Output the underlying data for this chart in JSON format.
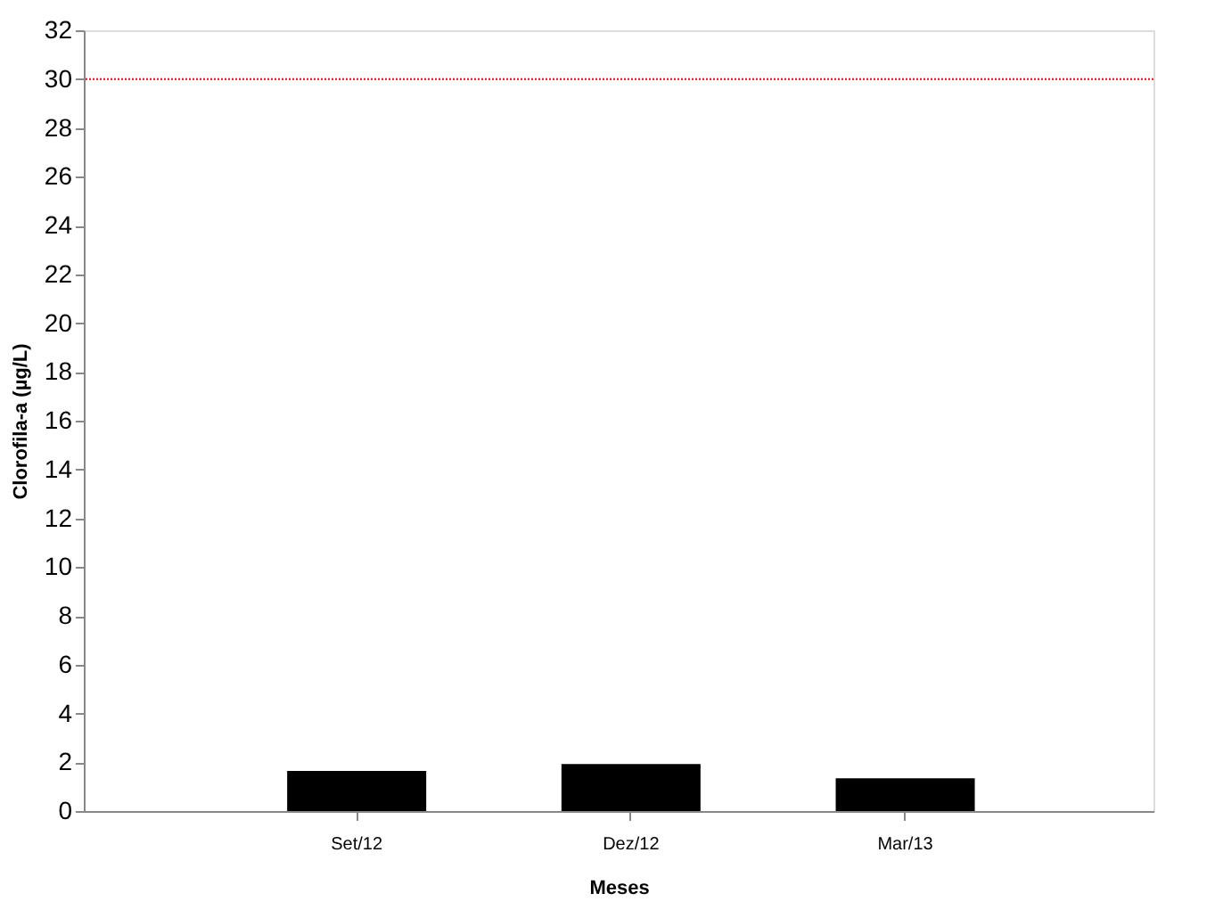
{
  "chart_data": {
    "type": "bar",
    "xlabel": "Meses",
    "ylabel": "Clorofila-a (µg/L)",
    "categories": [
      "Set/12",
      "Dez/12",
      "Mar/13"
    ],
    "values": [
      1.64,
      1.93,
      1.34
    ],
    "color": "#000000",
    "ylim": [
      0,
      32
    ],
    "yticks": [
      0,
      2,
      4,
      6,
      8,
      10,
      12,
      14,
      16,
      18,
      20,
      22,
      24,
      26,
      28,
      30,
      32
    ],
    "ref_lines": [
      {
        "axis": "y",
        "value": 30,
        "color": "#ff0000",
        "line_style": "dotted"
      }
    ],
    "grid": false
  }
}
